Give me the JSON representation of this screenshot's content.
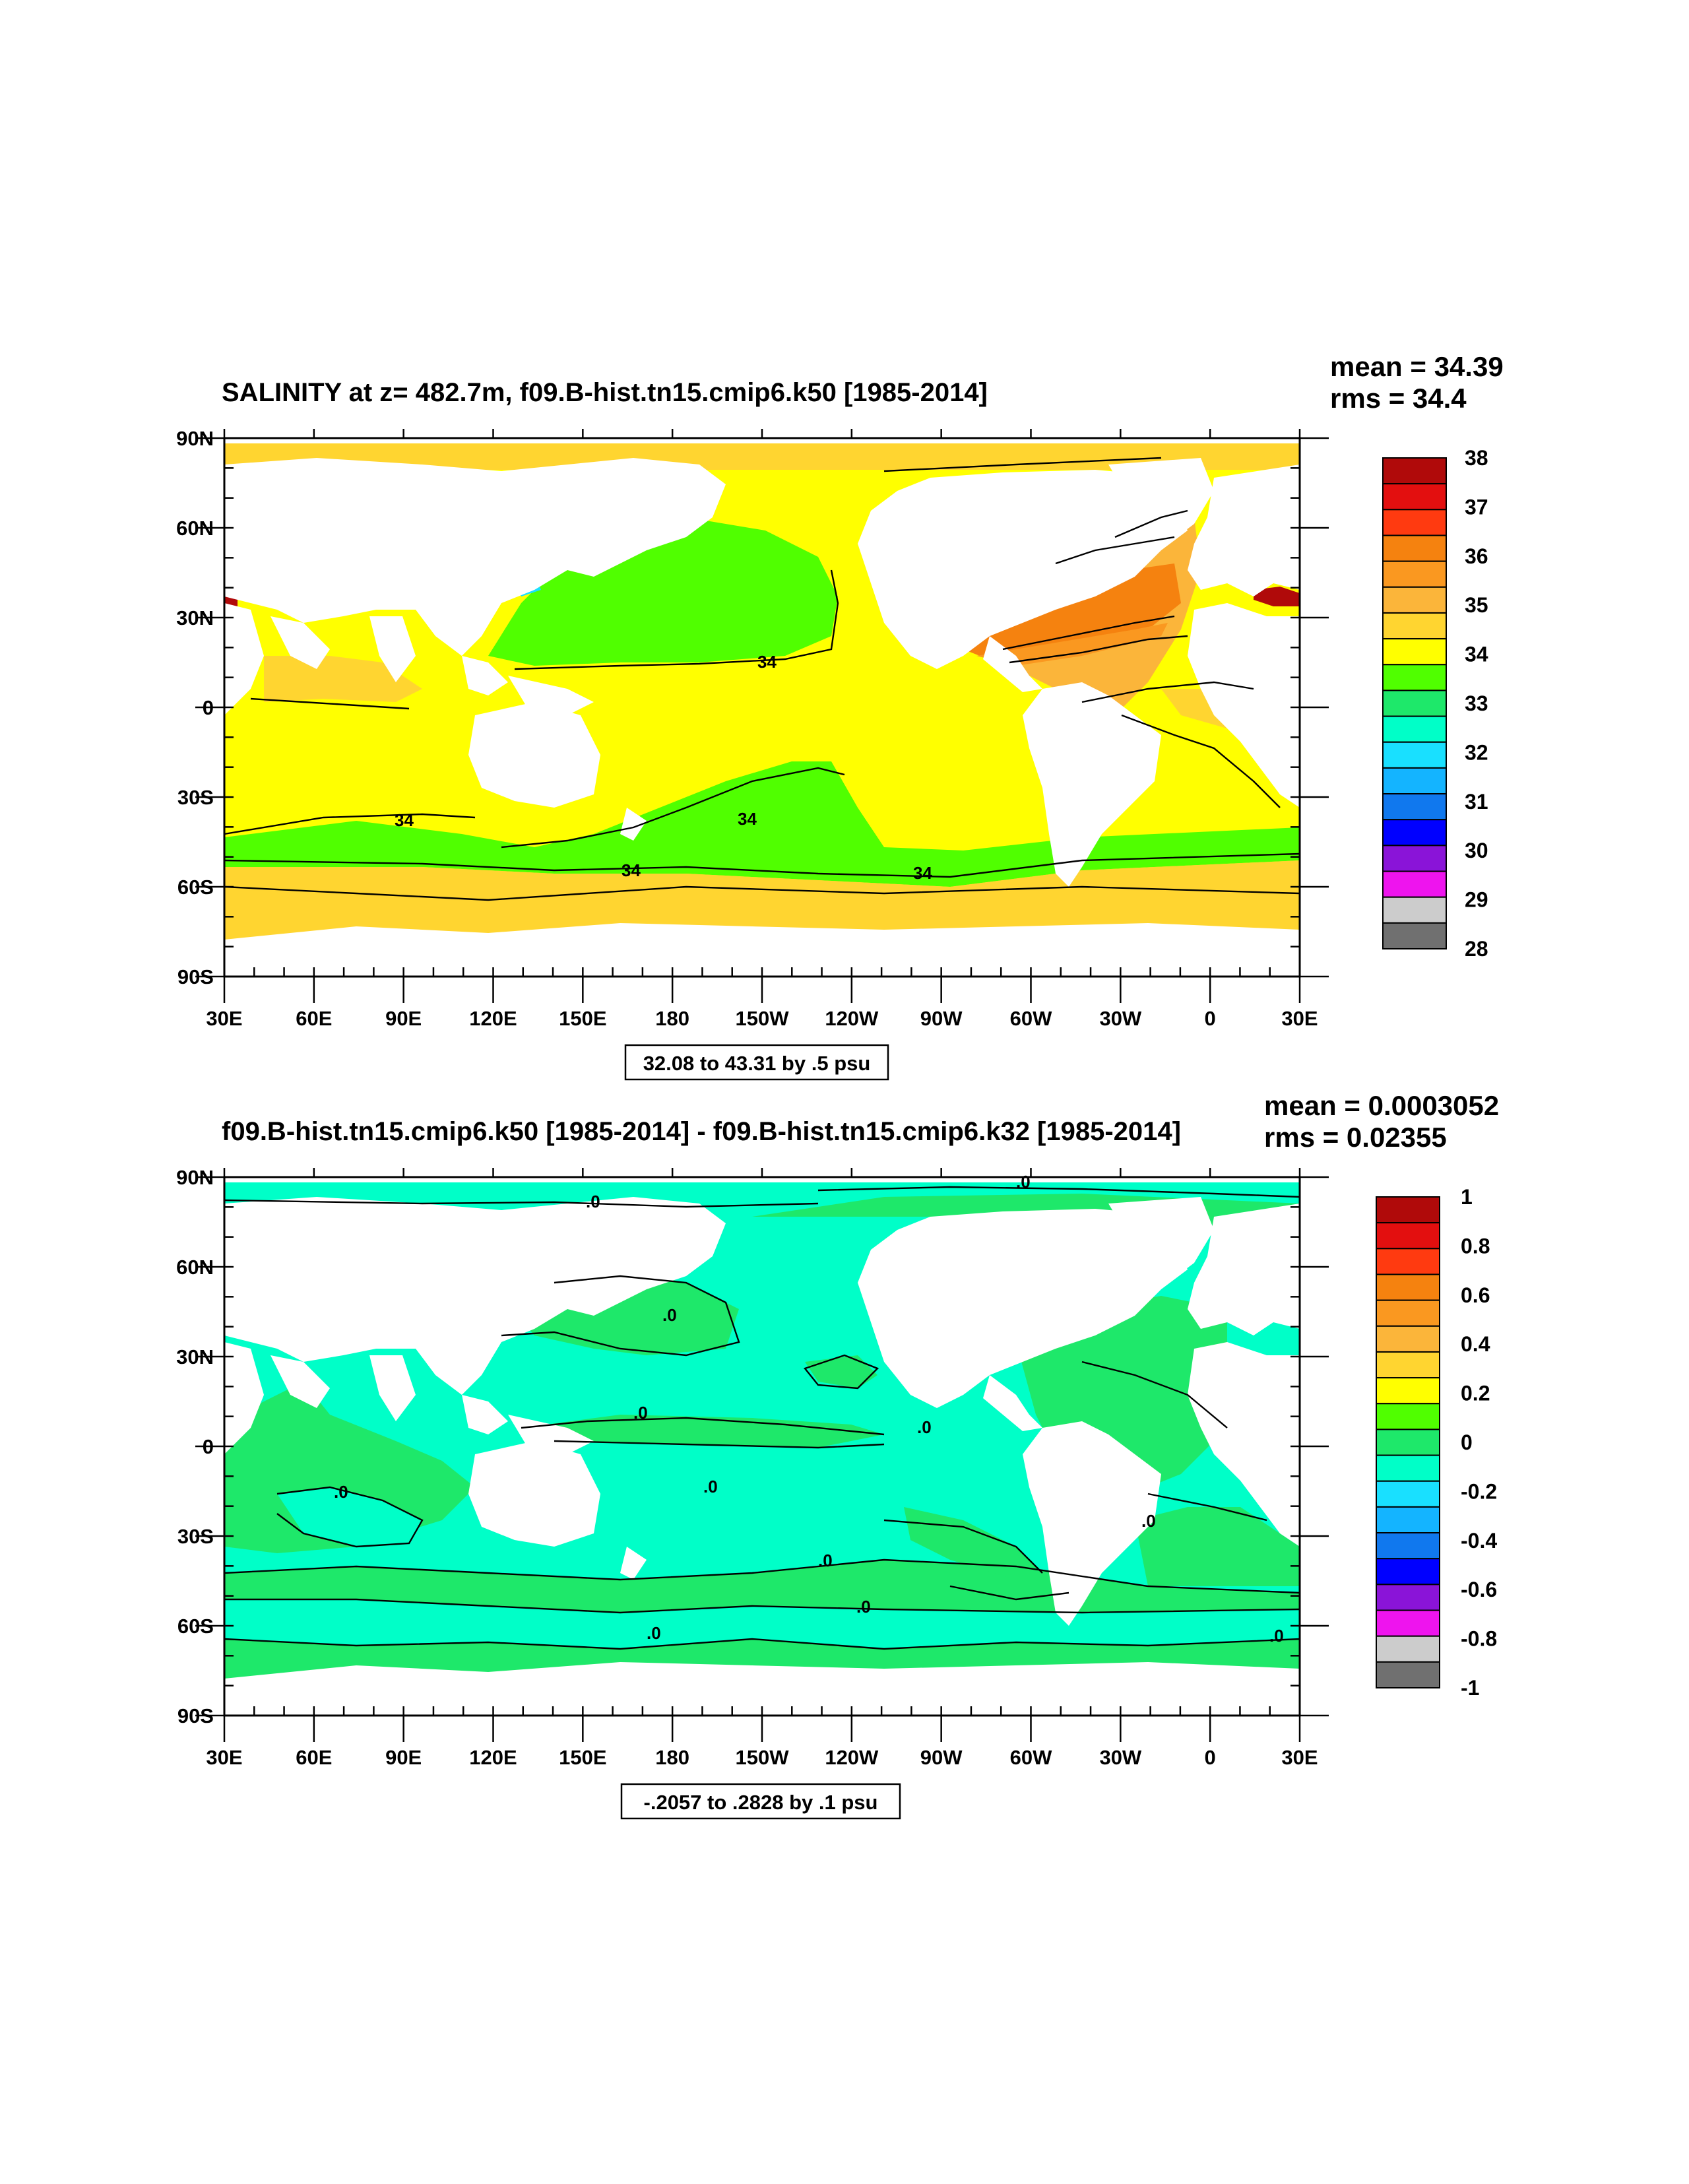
{
  "panels": [
    {
      "title": "SALINITY at z= 482.7m, f09.B-hist.tn15.cmip6.k50 [1985-2014]",
      "mean_text": "mean = 34.39",
      "rms_text": "rms = 34.4",
      "info_text": "32.08 to 43.31 by .5 psu",
      "colorbar": {
        "labels": [
          "38",
          "37",
          "36",
          "35",
          "34",
          "33",
          "32",
          "31",
          "30",
          "29",
          "28"
        ],
        "colors": [
          "#b00a0a",
          "#e30f0f",
          "#ff3a10",
          "#f5820f",
          "#fa9820",
          "#fbb53a",
          "#ffd530",
          "#ffff00",
          "#50ff00",
          "#1ee86a",
          "#00ffc8",
          "#19e0ff",
          "#14b4ff",
          "#1078ee",
          "#0000ff",
          "#8a14d8",
          "#ee14ee",
          "#cccccc",
          "#707070"
        ]
      },
      "contour_labels": [
        "34",
        "34",
        "34",
        "34",
        "34"
      ]
    },
    {
      "title": "f09.B-hist.tn15.cmip6.k50 [1985-2014] - f09.B-hist.tn15.cmip6.k32 [1985-2014]",
      "mean_text": "mean = 0.0003052",
      "rms_text": "rms = 0.02355",
      "info_text": "-.2057 to .2828 by .1 psu",
      "colorbar": {
        "labels": [
          "1",
          "0.8",
          "0.6",
          "0.4",
          "0.2",
          "0",
          "-0.2",
          "-0.4",
          "-0.6",
          "-0.8",
          "-1"
        ],
        "colors": [
          "#b00a0a",
          "#e30f0f",
          "#ff3a10",
          "#f5820f",
          "#fa9820",
          "#fbb53a",
          "#ffd530",
          "#ffff00",
          "#50ff00",
          "#1ee86a",
          "#00ffc8",
          "#19e0ff",
          "#14b4ff",
          "#1078ee",
          "#0000ff",
          "#8a14d8",
          "#ee14ee",
          "#cccccc",
          "#707070"
        ]
      },
      "contour_labels": [
        ".0",
        ".0",
        ".0",
        ".0",
        ".0",
        ".0",
        ".0",
        ".0",
        ".0",
        ".0",
        ".0",
        ".0"
      ]
    }
  ],
  "axes": {
    "lat_labels": [
      "90N",
      "60N",
      "30N",
      "0",
      "30S",
      "60S",
      "90S"
    ],
    "lon_labels": [
      "30E",
      "60E",
      "90E",
      "120E",
      "150E",
      "180",
      "150W",
      "120W",
      "90W",
      "60W",
      "30W",
      "0",
      "30E"
    ]
  },
  "colors": {
    "salinity_33_34": "#50ff00",
    "salinity_34_345": "#ffff00",
    "salinity_345_35": "#ffd530",
    "salinity_35_355": "#fbb53a",
    "salinity_355_36": "#fa9820",
    "salinity_36_365": "#f5820f",
    "salinity_38": "#b00a0a",
    "diff_0_01": "#1ee86a",
    "diff_m01_0": "#00ffc8",
    "diff_m02_m01": "#19e0ff",
    "land": "#ffffff"
  }
}
